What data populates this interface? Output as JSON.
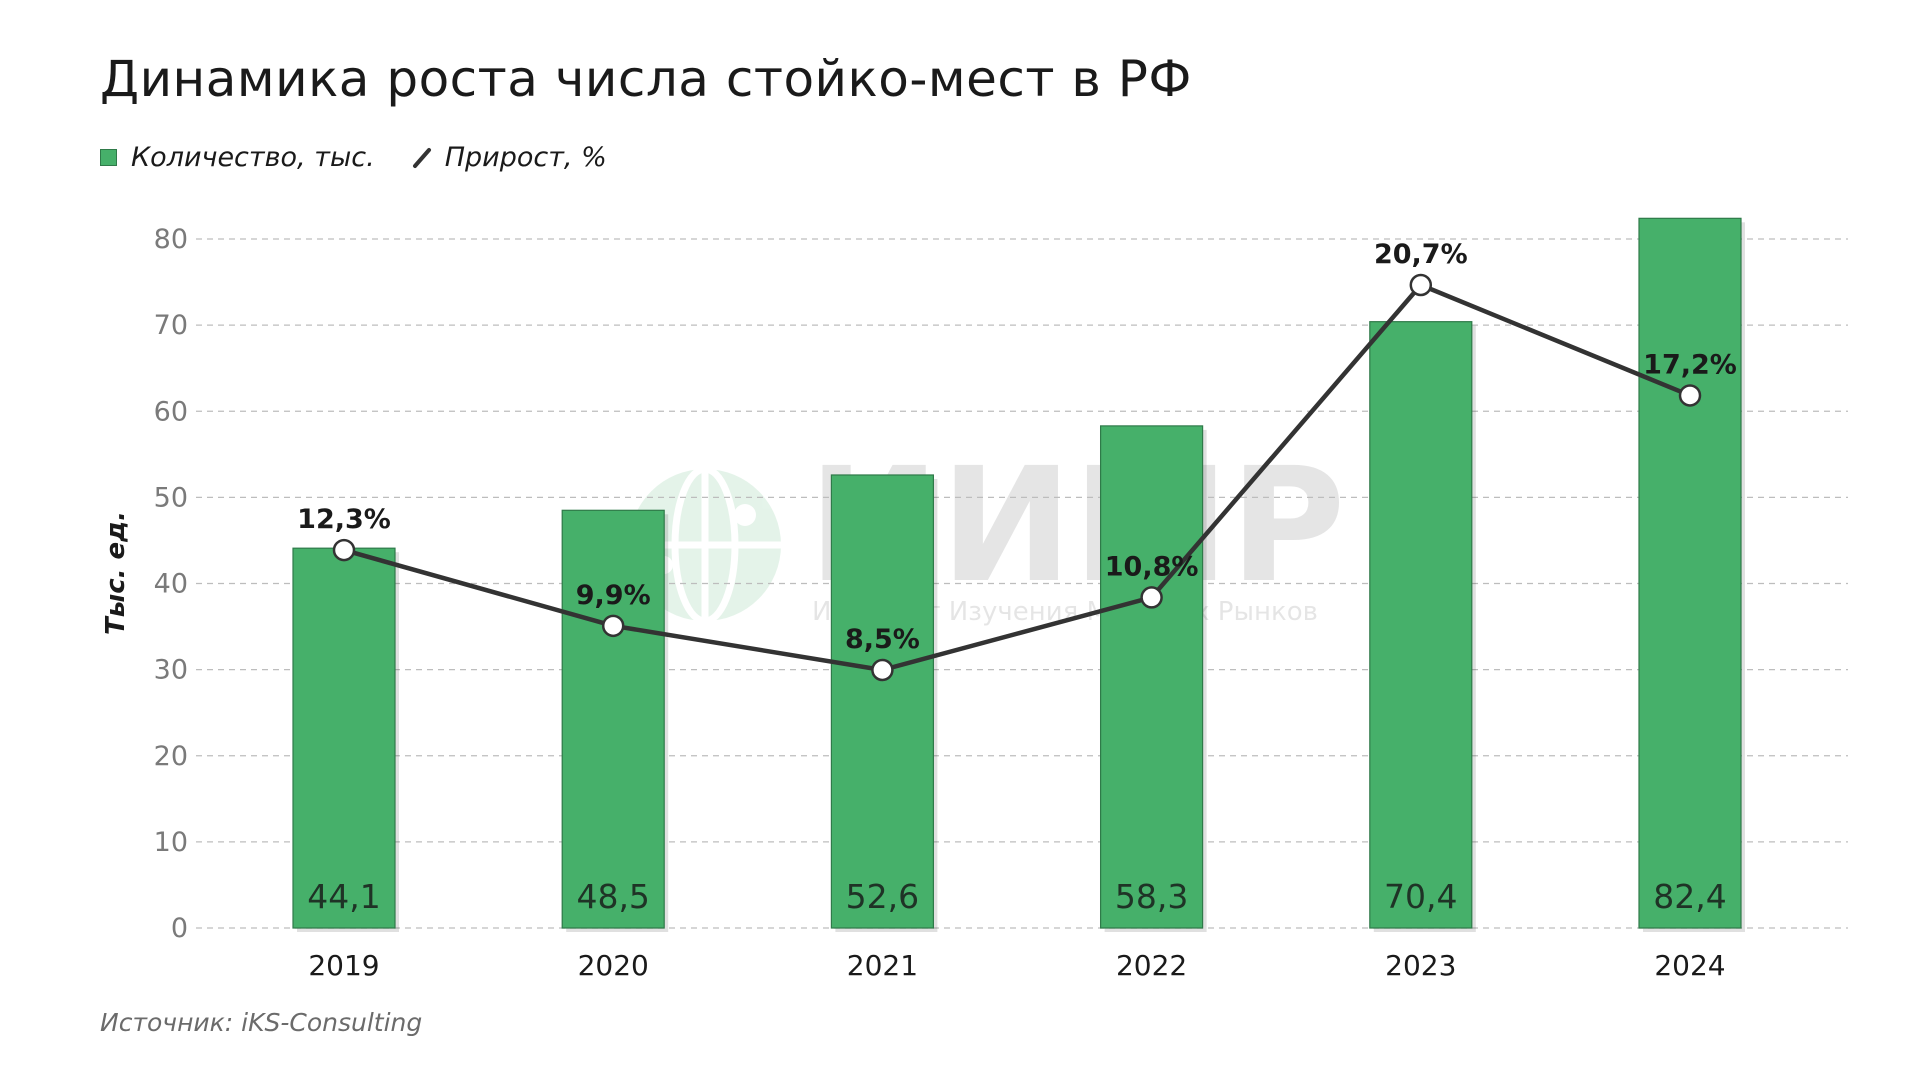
{
  "title": "Динамика роста числа стойко-мест в РФ",
  "legend": {
    "bars_label": "Количество, тыс.",
    "line_label": "Прирост, %"
  },
  "source": "Источник: iKS-Consulting",
  "watermark": {
    "logo_text": "ИИМР",
    "subtitle": "Институт Изучения Мировых Рынков"
  },
  "colors": {
    "bar": "#46b06a",
    "bar_edge": "#2f7a49",
    "line": "#333333",
    "grid": "#bdbdbd"
  },
  "chart_data": {
    "type": "bar",
    "title": "Динамика роста числа стойко-мест в РФ",
    "ylabel": "Тыс. ед.",
    "xlabel": "",
    "ylim": [
      0,
      80
    ],
    "yticks": [
      0,
      10,
      20,
      30,
      40,
      50,
      60,
      70,
      80
    ],
    "grid": true,
    "categories": [
      "2019",
      "2020",
      "2021",
      "2022",
      "2023",
      "2024"
    ],
    "series": [
      {
        "name": "Количество, тыс.",
        "type": "bar",
        "values": [
          44.1,
          48.5,
          52.6,
          58.3,
          70.4,
          82.4
        ],
        "labels": [
          "44,1",
          "48,5",
          "52,6",
          "58,3",
          "70,4",
          "82,4"
        ]
      },
      {
        "name": "Прирост, %",
        "type": "line",
        "values": [
          12.3,
          9.9,
          8.5,
          10.8,
          20.7,
          17.2
        ],
        "labels": [
          "12,3%",
          "9,9%",
          "8,5%",
          "10,8%",
          "20,7%",
          "17,2%"
        ]
      }
    ]
  }
}
